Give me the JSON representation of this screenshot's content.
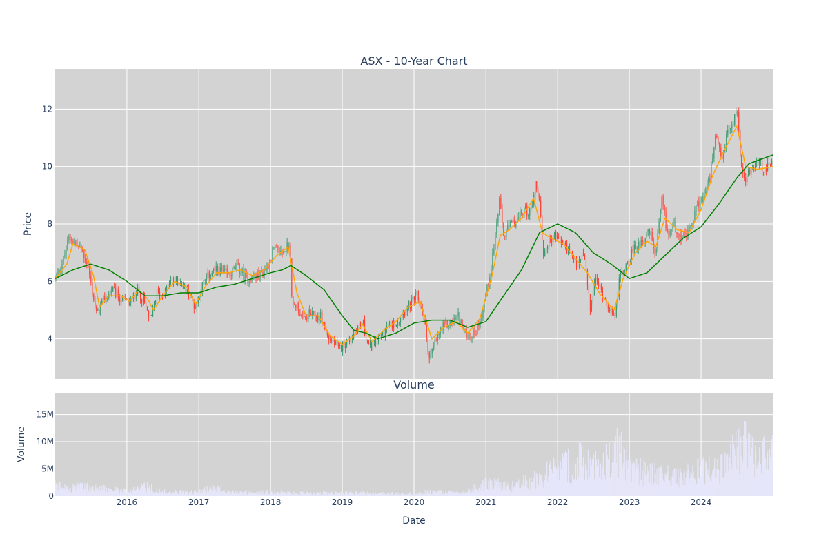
{
  "chart_data": [
    {
      "type": "candlestick",
      "title": "ASX - 10-Year Chart",
      "ylabel": "Price",
      "ylim": [
        2.6,
        13.4
      ],
      "yticks": [
        4,
        6,
        8,
        10,
        12
      ],
      "xlim": [
        "2015-01-01",
        "2024-12-31"
      ],
      "grid": true,
      "legend": "none",
      "colors": {
        "up": "#3d9970",
        "down": "#ff4136",
        "ma_short": "#ffa500",
        "ma_long": "#008000",
        "plot_bg": "#d3d3d3",
        "grid": "#ffffff"
      },
      "price_path": [
        [
          "2015-01-01",
          6.1
        ],
        [
          "2015-02-15",
          6.8
        ],
        [
          "2015-03-15",
          7.6
        ],
        [
          "2015-04-15",
          7.3
        ],
        [
          "2015-05-15",
          7.1
        ],
        [
          "2015-06-15",
          6.6
        ],
        [
          "2015-07-10",
          5.6
        ],
        [
          "2015-08-01",
          4.8
        ],
        [
          "2015-09-01",
          5.3
        ],
        [
          "2015-10-15",
          5.7
        ],
        [
          "2015-12-01",
          5.4
        ],
        [
          "2016-01-15",
          5.2
        ],
        [
          "2016-02-15",
          5.7
        ],
        [
          "2016-03-15",
          5.5
        ],
        [
          "2016-05-01",
          4.6
        ],
        [
          "2016-06-01",
          5.6
        ],
        [
          "2016-07-01",
          5.5
        ],
        [
          "2016-08-15",
          6.0
        ],
        [
          "2016-10-01",
          6.0
        ],
        [
          "2016-11-15",
          5.5
        ],
        [
          "2016-12-15",
          5.1
        ],
        [
          "2017-01-15",
          5.8
        ],
        [
          "2017-03-01",
          6.3
        ],
        [
          "2017-04-15",
          6.4
        ],
        [
          "2017-06-01",
          6.2
        ],
        [
          "2017-07-15",
          6.5
        ],
        [
          "2017-09-01",
          6.1
        ],
        [
          "2017-11-01",
          6.2
        ],
        [
          "2017-12-15",
          6.5
        ],
        [
          "2018-01-15",
          7.1
        ],
        [
          "2018-03-01",
          7.0
        ],
        [
          "2018-04-10",
          7.4
        ],
        [
          "2018-04-20",
          5.1
        ],
        [
          "2018-05-15",
          5.2
        ],
        [
          "2018-06-15",
          4.6
        ],
        [
          "2018-07-15",
          4.9
        ],
        [
          "2018-08-15",
          4.7
        ],
        [
          "2018-09-15",
          4.8
        ],
        [
          "2018-10-15",
          4.1
        ],
        [
          "2018-11-15",
          3.9
        ],
        [
          "2018-12-15",
          3.6
        ],
        [
          "2019-01-15",
          3.9
        ],
        [
          "2019-02-15",
          4.0
        ],
        [
          "2019-03-15",
          4.4
        ],
        [
          "2019-04-15",
          4.6
        ],
        [
          "2019-05-15",
          3.7
        ],
        [
          "2019-06-15",
          3.8
        ],
        [
          "2019-07-15",
          4.1
        ],
        [
          "2019-08-15",
          4.4
        ],
        [
          "2019-09-15",
          4.5
        ],
        [
          "2019-10-15",
          4.7
        ],
        [
          "2019-11-15",
          5.0
        ],
        [
          "2019-12-15",
          5.2
        ],
        [
          "2020-01-15",
          5.5
        ],
        [
          "2020-02-15",
          5.0
        ],
        [
          "2020-03-20",
          3.3
        ],
        [
          "2020-04-15",
          3.8
        ],
        [
          "2020-05-15",
          4.3
        ],
        [
          "2020-06-15",
          4.5
        ],
        [
          "2020-07-15",
          4.6
        ],
        [
          "2020-08-15",
          4.8
        ],
        [
          "2020-09-15",
          4.2
        ],
        [
          "2020-10-15",
          4.1
        ],
        [
          "2020-11-15",
          4.3
        ],
        [
          "2020-12-15",
          5.0
        ],
        [
          "2021-01-15",
          6.0
        ],
        [
          "2021-02-15",
          7.4
        ],
        [
          "2021-03-10",
          8.8
        ],
        [
          "2021-04-01",
          7.6
        ],
        [
          "2021-05-01",
          7.9
        ],
        [
          "2021-06-15",
          8.2
        ],
        [
          "2021-07-15",
          8.5
        ],
        [
          "2021-08-15",
          8.4
        ],
        [
          "2021-09-10",
          9.4
        ],
        [
          "2021-10-01",
          8.8
        ],
        [
          "2021-10-20",
          6.9
        ],
        [
          "2021-11-15",
          7.4
        ],
        [
          "2021-12-15",
          7.6
        ],
        [
          "2022-01-15",
          7.4
        ],
        [
          "2022-02-15",
          7.2
        ],
        [
          "2022-03-15",
          6.8
        ],
        [
          "2022-04-15",
          6.5
        ],
        [
          "2022-05-15",
          7.0
        ],
        [
          "2022-06-15",
          5.0
        ],
        [
          "2022-07-15",
          6.1
        ],
        [
          "2022-08-15",
          5.6
        ],
        [
          "2022-09-15",
          5.2
        ],
        [
          "2022-10-15",
          4.7
        ],
        [
          "2022-11-15",
          6.2
        ],
        [
          "2022-12-15",
          6.6
        ],
        [
          "2023-01-15",
          7.0
        ],
        [
          "2023-02-15",
          7.3
        ],
        [
          "2023-03-15",
          7.5
        ],
        [
          "2023-04-15",
          7.7
        ],
        [
          "2023-05-15",
          6.9
        ],
        [
          "2023-06-15",
          8.8
        ],
        [
          "2023-07-15",
          7.6
        ],
        [
          "2023-08-15",
          8.0
        ],
        [
          "2023-09-15",
          7.6
        ],
        [
          "2023-10-15",
          7.5
        ],
        [
          "2023-11-15",
          8.0
        ],
        [
          "2023-12-15",
          8.7
        ],
        [
          "2024-01-15",
          9.0
        ],
        [
          "2024-02-15",
          9.6
        ],
        [
          "2024-03-15",
          11.0
        ],
        [
          "2024-04-15",
          10.2
        ],
        [
          "2024-05-15",
          11.2
        ],
        [
          "2024-06-15",
          11.5
        ],
        [
          "2024-07-01",
          12.2
        ],
        [
          "2024-07-20",
          10.2
        ],
        [
          "2024-08-15",
          9.6
        ],
        [
          "2024-09-15",
          9.9
        ],
        [
          "2024-10-15",
          10.2
        ],
        [
          "2024-11-15",
          9.8
        ],
        [
          "2024-12-31",
          10.2
        ]
      ],
      "ma_short": [
        [
          "2015-01-01",
          6.1
        ],
        [
          "2015-03-01",
          6.6
        ],
        [
          "2015-04-01",
          7.3
        ],
        [
          "2015-06-01",
          7.1
        ],
        [
          "2015-07-15",
          6.2
        ],
        [
          "2015-08-15",
          5.1
        ],
        [
          "2015-10-01",
          5.5
        ],
        [
          "2015-12-01",
          5.5
        ],
        [
          "2016-01-15",
          5.3
        ],
        [
          "2016-03-01",
          5.7
        ],
        [
          "2016-04-15",
          5.4
        ],
        [
          "2016-05-15",
          5.0
        ],
        [
          "2016-07-01",
          5.5
        ],
        [
          "2016-09-01",
          6.0
        ],
        [
          "2016-11-01",
          5.8
        ],
        [
          "2016-12-15",
          5.2
        ],
        [
          "2017-02-01",
          5.8
        ],
        [
          "2017-04-01",
          6.3
        ],
        [
          "2017-06-01",
          6.3
        ],
        [
          "2017-08-01",
          6.4
        ],
        [
          "2017-10-01",
          6.2
        ],
        [
          "2017-12-01",
          6.4
        ],
        [
          "2018-02-01",
          6.9
        ],
        [
          "2018-04-01",
          7.2
        ],
        [
          "2018-05-15",
          5.6
        ],
        [
          "2018-07-01",
          4.8
        ],
        [
          "2018-09-01",
          4.8
        ],
        [
          "2018-11-01",
          4.1
        ],
        [
          "2019-01-01",
          3.8
        ],
        [
          "2019-03-01",
          4.1
        ],
        [
          "2019-04-15",
          4.5
        ],
        [
          "2019-06-01",
          3.9
        ],
        [
          "2019-08-01",
          4.3
        ],
        [
          "2019-10-01",
          4.6
        ],
        [
          "2019-12-01",
          5.1
        ],
        [
          "2020-02-01",
          5.3
        ],
        [
          "2020-04-01",
          4.0
        ],
        [
          "2020-06-01",
          4.4
        ],
        [
          "2020-08-01",
          4.6
        ],
        [
          "2020-10-01",
          4.2
        ],
        [
          "2020-12-01",
          4.7
        ],
        [
          "2021-02-01",
          6.2
        ],
        [
          "2021-03-15",
          7.6
        ],
        [
          "2021-05-01",
          7.8
        ],
        [
          "2021-07-01",
          8.2
        ],
        [
          "2021-09-01",
          8.9
        ],
        [
          "2021-10-15",
          7.7
        ],
        [
          "2021-12-01",
          7.5
        ],
        [
          "2022-02-01",
          7.3
        ],
        [
          "2022-04-01",
          6.8
        ],
        [
          "2022-06-01",
          6.3
        ],
        [
          "2022-08-01",
          5.6
        ],
        [
          "2022-10-15",
          5.0
        ],
        [
          "2022-12-01",
          6.1
        ],
        [
          "2023-02-01",
          7.0
        ],
        [
          "2023-04-01",
          7.4
        ],
        [
          "2023-05-15",
          7.2
        ],
        [
          "2023-07-01",
          8.2
        ],
        [
          "2023-09-01",
          7.8
        ],
        [
          "2023-11-01",
          7.7
        ],
        [
          "2024-01-01",
          8.5
        ],
        [
          "2024-03-01",
          9.7
        ],
        [
          "2024-05-01",
          10.6
        ],
        [
          "2024-07-01",
          11.4
        ],
        [
          "2024-08-15",
          10.0
        ],
        [
          "2024-10-15",
          9.9
        ],
        [
          "2024-12-31",
          10.0
        ]
      ],
      "ma_long": [
        [
          "2015-01-01",
          6.1
        ],
        [
          "2015-04-01",
          6.4
        ],
        [
          "2015-07-01",
          6.6
        ],
        [
          "2015-10-01",
          6.4
        ],
        [
          "2016-01-01",
          6.0
        ],
        [
          "2016-04-01",
          5.5
        ],
        [
          "2016-07-01",
          5.5
        ],
        [
          "2016-10-01",
          5.6
        ],
        [
          "2017-01-01",
          5.6
        ],
        [
          "2017-04-01",
          5.8
        ],
        [
          "2017-07-01",
          5.9
        ],
        [
          "2017-10-01",
          6.1
        ],
        [
          "2018-01-01",
          6.3
        ],
        [
          "2018-03-01",
          6.4
        ],
        [
          "2018-04-15",
          6.55
        ],
        [
          "2018-07-01",
          6.2
        ],
        [
          "2018-10-01",
          5.7
        ],
        [
          "2019-01-01",
          4.8
        ],
        [
          "2019-03-01",
          4.3
        ],
        [
          "2019-05-01",
          4.2
        ],
        [
          "2019-07-01",
          4.0
        ],
        [
          "2019-10-01",
          4.2
        ],
        [
          "2020-01-01",
          4.55
        ],
        [
          "2020-04-01",
          4.65
        ],
        [
          "2020-07-01",
          4.65
        ],
        [
          "2020-10-01",
          4.4
        ],
        [
          "2021-01-01",
          4.6
        ],
        [
          "2021-04-01",
          5.5
        ],
        [
          "2021-07-01",
          6.4
        ],
        [
          "2021-10-01",
          7.7
        ],
        [
          "2022-01-01",
          8.0
        ],
        [
          "2022-04-01",
          7.7
        ],
        [
          "2022-07-01",
          7.0
        ],
        [
          "2022-10-01",
          6.6
        ],
        [
          "2023-01-01",
          6.1
        ],
        [
          "2023-04-01",
          6.3
        ],
        [
          "2023-07-01",
          6.9
        ],
        [
          "2023-10-01",
          7.5
        ],
        [
          "2024-01-01",
          7.9
        ],
        [
          "2024-04-01",
          8.7
        ],
        [
          "2024-07-01",
          9.6
        ],
        [
          "2024-09-01",
          10.1
        ],
        [
          "2024-12-31",
          10.4
        ]
      ]
    },
    {
      "type": "bar",
      "title": "Volume",
      "xlabel": "Date",
      "ylabel": "Volume",
      "ylim": [
        0,
        19000000
      ],
      "yticks": [
        0,
        5000000,
        10000000,
        15000000
      ],
      "ytick_labels": [
        "0",
        "5M",
        "10M",
        "15M"
      ],
      "xticks": [
        "2016-01-01",
        "2017-01-01",
        "2018-01-01",
        "2019-01-01",
        "2020-01-01",
        "2021-01-01",
        "2022-01-01",
        "2023-01-01",
        "2024-01-01"
      ],
      "xtick_labels": [
        "2016",
        "2017",
        "2018",
        "2019",
        "2020",
        "2021",
        "2022",
        "2023",
        "2024"
      ],
      "grid": true,
      "colors": {
        "bar": "#e6e6fa",
        "plot_bg": "#d3d3d3",
        "grid": "#ffffff"
      },
      "volume_levels_millions": [
        [
          "2015-01-01",
          2.0
        ],
        [
          "2015-06-01",
          1.8
        ],
        [
          "2016-01-01",
          1.0
        ],
        [
          "2016-04-01",
          2.0
        ],
        [
          "2016-08-01",
          0.8
        ],
        [
          "2017-01-01",
          0.9
        ],
        [
          "2017-03-01",
          1.6
        ],
        [
          "2017-07-01",
          0.8
        ],
        [
          "2018-01-01",
          0.9
        ],
        [
          "2018-06-01",
          0.6
        ],
        [
          "2019-01-01",
          0.7
        ],
        [
          "2019-06-01",
          0.6
        ],
        [
          "2020-01-01",
          0.5
        ],
        [
          "2020-04-01",
          1.0
        ],
        [
          "2020-09-01",
          0.6
        ],
        [
          "2021-01-01",
          2.5
        ],
        [
          "2021-06-01",
          2.0
        ],
        [
          "2021-10-01",
          4.0
        ],
        [
          "2022-01-01",
          5.5
        ],
        [
          "2022-05-01",
          7.0
        ],
        [
          "2022-08-01",
          6.0
        ],
        [
          "2022-11-01",
          9.0
        ],
        [
          "2023-02-01",
          5.0
        ],
        [
          "2023-06-01",
          4.5
        ],
        [
          "2023-10-01",
          4.0
        ],
        [
          "2024-01-01",
          5.0
        ],
        [
          "2024-05-01",
          5.5
        ],
        [
          "2024-08-01",
          11.0
        ],
        [
          "2024-10-01",
          7.5
        ],
        [
          "2024-12-31",
          8.0
        ]
      ]
    }
  ]
}
